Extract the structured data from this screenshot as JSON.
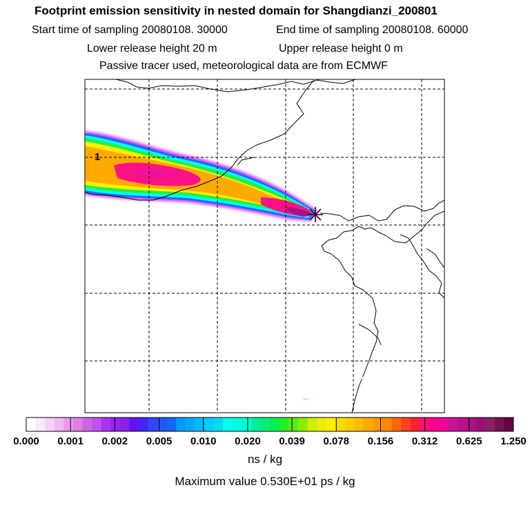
{
  "title": "Footprint emission sensitivity in nested domain for Shangdianzi_200801",
  "info": {
    "start_label": "Start time of sampling 20080108. 30000",
    "end_label": "End time of sampling 20080108. 60000",
    "lower_label": "Lower release height   20 m",
    "upper_label": "Upper release height    0 m",
    "tracer_label": "Passive tracer used, meteorological data are from ECMWF"
  },
  "map": {
    "contour_label": "1",
    "release_marker": "star-marker-icon"
  },
  "legend": {
    "ticks": [
      "0.000",
      "0.001",
      "0.002",
      "0.005",
      "0.010",
      "0.020",
      "0.039",
      "0.078",
      "0.156",
      "0.312",
      "0.625",
      "1.250"
    ],
    "colors": [
      "#ffffff",
      "#fbe9fb",
      "#f5d2f5",
      "#efb8ef",
      "#e99ce9",
      "#e27ee2",
      "#cc66e8",
      "#bb55ee",
      "#aa33ee",
      "#9922f0",
      "#8822ee",
      "#6611ee",
      "#4422ff",
      "#3344ff",
      "#2255ff",
      "#1166ff",
      "#0099ff",
      "#00aaff",
      "#00bbff",
      "#00ccff",
      "#00ddee",
      "#00ffee",
      "#00ffdd",
      "#00ffcc",
      "#00ee99",
      "#00ee77",
      "#00ee55",
      "#22ee22",
      "#55ee11",
      "#88ee00",
      "#ccee00",
      "#eeee00",
      "#ffee00",
      "#ffdd00",
      "#ffcc00",
      "#ffbb00",
      "#ffaa00",
      "#ff9900",
      "#ff8800",
      "#ff6611",
      "#ff4422",
      "#ff2233",
      "#ff1177",
      "#ff0088",
      "#ee0099",
      "#cc1199",
      "#bb1188",
      "#aa1188",
      "#991177",
      "#882266",
      "#771155",
      "#660044"
    ],
    "unit": "ns / kg",
    "max_value": "Maximum value  0.530E+01 ps / kg"
  },
  "colors": {
    "frame": "#000000",
    "grid": "#000000",
    "coast": "#000000"
  }
}
